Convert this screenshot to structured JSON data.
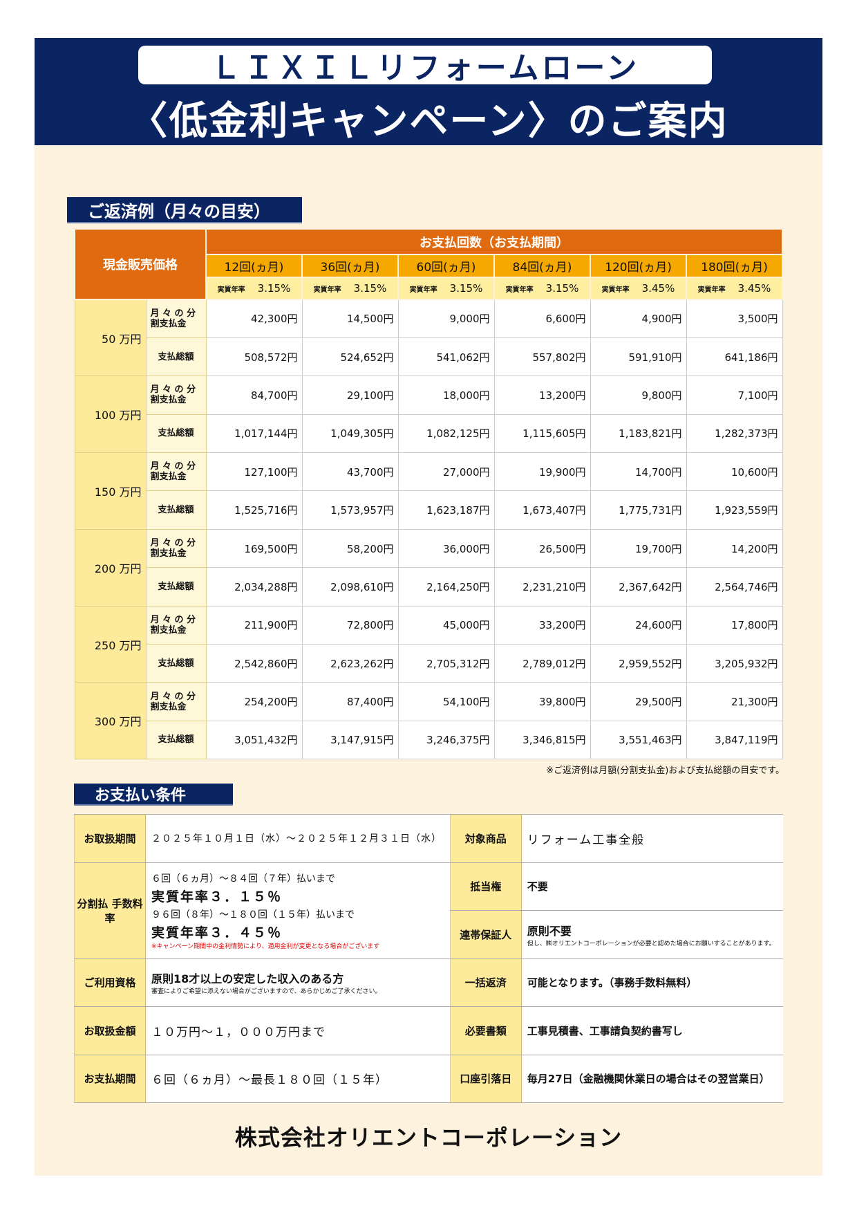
{
  "header": {
    "line1": "ＬＩＸＩＬリフォームローン",
    "line2": "〈低金利キャンペーン〉のご案内"
  },
  "repayment": {
    "section_title": "ご返済例（月々の目安）",
    "price_header": "現金販売価格",
    "period_header": "お支払回数（お支払期間）",
    "rate_label": "実質年率",
    "columns": [
      {
        "label": "12回(ヵ月)",
        "rate": "3.15%"
      },
      {
        "label": "36回(ヵ月)",
        "rate": "3.15%"
      },
      {
        "label": "60回(ヵ月)",
        "rate": "3.15%"
      },
      {
        "label": "84回(ヵ月)",
        "rate": "3.15%"
      },
      {
        "label": "120回(ヵ月)",
        "rate": "3.45%"
      },
      {
        "label": "180回(ヵ月)",
        "rate": "3.45%"
      }
    ],
    "monthly_label": "月 々 の 分割支払金",
    "total_label": "支払総額",
    "rows": [
      {
        "price": "50 万円",
        "monthly": [
          "42,300円",
          "14,500円",
          "9,000円",
          "6,600円",
          "4,900円",
          "3,500円"
        ],
        "total": [
          "508,572円",
          "524,652円",
          "541,062円",
          "557,802円",
          "591,910円",
          "641,186円"
        ]
      },
      {
        "price": "100 万円",
        "monthly": [
          "84,700円",
          "29,100円",
          "18,000円",
          "13,200円",
          "9,800円",
          "7,100円"
        ],
        "total": [
          "1,017,144円",
          "1,049,305円",
          "1,082,125円",
          "1,115,605円",
          "1,183,821円",
          "1,282,373円"
        ]
      },
      {
        "price": "150 万円",
        "monthly": [
          "127,100円",
          "43,700円",
          "27,000円",
          "19,900円",
          "14,700円",
          "10,600円"
        ],
        "total": [
          "1,525,716円",
          "1,573,957円",
          "1,623,187円",
          "1,673,407円",
          "1,775,731円",
          "1,923,559円"
        ]
      },
      {
        "price": "200 万円",
        "monthly": [
          "169,500円",
          "58,200円",
          "36,000円",
          "26,500円",
          "19,700円",
          "14,200円"
        ],
        "total": [
          "2,034,288円",
          "2,098,610円",
          "2,164,250円",
          "2,231,210円",
          "2,367,642円",
          "2,564,746円"
        ]
      },
      {
        "price": "250 万円",
        "monthly": [
          "211,900円",
          "72,800円",
          "45,000円",
          "33,200円",
          "24,600円",
          "17,800円"
        ],
        "total": [
          "2,542,860円",
          "2,623,262円",
          "2,705,312円",
          "2,789,012円",
          "2,959,552円",
          "3,205,932円"
        ]
      },
      {
        "price": "300 万円",
        "monthly": [
          "254,200円",
          "87,400円",
          "54,100円",
          "39,800円",
          "29,500円",
          "21,300円"
        ],
        "total": [
          "3,051,432円",
          "3,147,915円",
          "3,246,375円",
          "3,346,815円",
          "3,551,463円",
          "3,847,119円"
        ]
      }
    ],
    "note": "※ご返済例は月額(分割支払金)および支払総額の目安です。"
  },
  "conditions": {
    "section_title": "お支払い条件",
    "period_label": "お取扱期間",
    "period_value": "２０２５年１０月１日（水）～２０２５年１２月３１日（水）",
    "product_label": "対象商品",
    "product_value": "リフォーム工事全般",
    "fee_label": "分割払 手数料率",
    "fee_range1": "６回（６ヵ月）～８４回（７年）払いまで",
    "fee_rate1": "実質年率３．１５％",
    "fee_range2": "９６回（８年）～１８０回（１５年）払いまで",
    "fee_rate2": "実質年率３．４５％",
    "fee_note": "※キャンペーン期間中の金利情勢により、適用金利が変更となる場合がございます",
    "mortgage_label": "抵当権",
    "mortgage_value": "不要",
    "guarantor_label": "連帯保証人",
    "guarantor_value": "原則不要",
    "guarantor_note": "但し、㈱オリエントコーポレーションが必要と認めた場合にお願いすることがあります。",
    "eligibility_label": "ご利用資格",
    "eligibility_value": "原則18才以上の安定した収入のある方",
    "eligibility_note": "審査によりご希望に添えない場合がございますので、あらかじめご了承ください。",
    "prepay_label": "一括返済",
    "prepay_value": "可能となります。（事務手数料無料）",
    "amount_label": "お取扱金額",
    "amount_value": "１０万円～１，０００万円まで",
    "docs_label": "必要書類",
    "docs_value": "工事見積書、工事請負契約書写し",
    "term_label": "お支払期間",
    "term_value": "６回（６ヵ月）～最長１８０回（１５年）",
    "debit_label": "口座引落日",
    "debit_value": "毎月27日（金融機関休業日の場合はその翌営業日）"
  },
  "footer": {
    "company": "株式会社オリエントコーポレーション"
  },
  "colors": {
    "navy": "#0B2462",
    "orange": "#E06A10",
    "amber": "#F5A800",
    "yellow": "#FDEA9A",
    "cream": "#FDF2DE",
    "red": "#E00000"
  }
}
